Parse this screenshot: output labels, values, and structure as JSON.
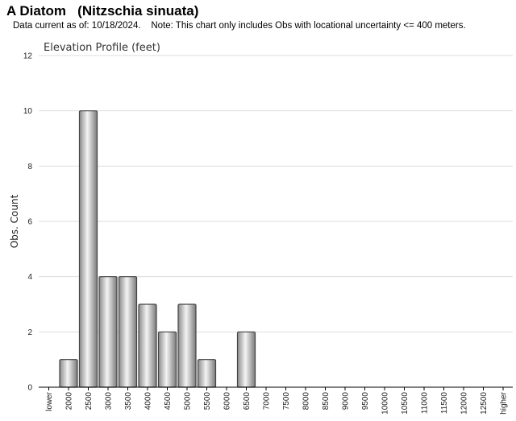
{
  "header": {
    "title": "A Diatom   (Nitzschia sinuata)",
    "note": "Data current as of: 10/18/2024.    Note: This chart only includes Obs with locational uncertainty <= 400 meters."
  },
  "chart_data": {
    "type": "bar",
    "title": "Elevation Profile (feet)",
    "xlabel": "",
    "ylabel": "Obs. Count",
    "ylim": [
      0,
      12
    ],
    "yticks": [
      0,
      2,
      4,
      6,
      8,
      10,
      12
    ],
    "grid": true,
    "categories": [
      "lower",
      "2000",
      "2500",
      "3000",
      "3500",
      "4000",
      "4500",
      "5000",
      "5500",
      "6000",
      "6500",
      "7000",
      "7500",
      "8000",
      "8500",
      "9000",
      "9500",
      "10000",
      "10500",
      "11000",
      "11500",
      "12000",
      "12500",
      "higher"
    ],
    "values": [
      0,
      1,
      10,
      4,
      4,
      3,
      2,
      3,
      1,
      0,
      2,
      0,
      0,
      0,
      0,
      0,
      0,
      0,
      0,
      0,
      0,
      0,
      0,
      0
    ],
    "colors": {
      "bar_edge": "#444444",
      "bar_light": "#f4f4f4",
      "bar_dark": "#8a8a8a",
      "grid": "#dddddd",
      "axis": "#000000"
    }
  }
}
